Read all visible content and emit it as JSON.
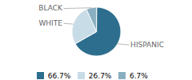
{
  "chart_data": {
    "type": "pie",
    "categories": [
      "HISPANIC",
      "WHITE",
      "BLACK"
    ],
    "values": [
      66.7,
      26.7,
      6.7
    ],
    "value_labels": [
      "66.7%",
      "26.7%",
      "6.7%"
    ],
    "colors": [
      "#2d6e8e",
      "#c8dce8",
      "#8aafc0"
    ],
    "legend": "bottom"
  }
}
